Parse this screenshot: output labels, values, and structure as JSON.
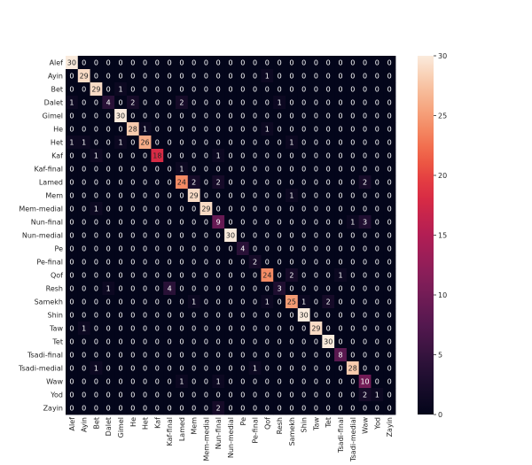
{
  "chart_data": {
    "type": "heatmap",
    "title": "",
    "xlabel": "",
    "ylabel": "",
    "labels": [
      "Alef",
      "Ayin",
      "Bet",
      "Dalet",
      "Gimel",
      "He",
      "Het",
      "Kaf",
      "Kaf-final",
      "Lamed",
      "Mem",
      "Mem-medial",
      "Nun-final",
      "Nun-medial",
      "Pe",
      "Pe-final",
      "Qof",
      "Resh",
      "Samekh",
      "Shin",
      "Taw",
      "Tet",
      "Tsadi-final",
      "Tsadi-medial",
      "Waw",
      "Yod",
      "Zayin"
    ],
    "matrix": [
      [
        30,
        0,
        0,
        0,
        0,
        0,
        0,
        0,
        0,
        0,
        0,
        0,
        0,
        0,
        0,
        0,
        0,
        0,
        0,
        0,
        0,
        0,
        0,
        0,
        0,
        0,
        0
      ],
      [
        0,
        29,
        0,
        0,
        0,
        0,
        0,
        0,
        0,
        0,
        0,
        0,
        0,
        0,
        0,
        0,
        1,
        0,
        0,
        0,
        0,
        0,
        0,
        0,
        0,
        0,
        0
      ],
      [
        0,
        0,
        29,
        0,
        1,
        0,
        0,
        0,
        0,
        0,
        0,
        0,
        0,
        0,
        0,
        0,
        0,
        0,
        0,
        0,
        0,
        0,
        0,
        0,
        0,
        0,
        0
      ],
      [
        1,
        0,
        0,
        4,
        0,
        2,
        0,
        0,
        0,
        2,
        0,
        0,
        0,
        0,
        0,
        0,
        0,
        1,
        0,
        0,
        0,
        0,
        0,
        0,
        0,
        0,
        0
      ],
      [
        0,
        0,
        0,
        0,
        30,
        0,
        0,
        0,
        0,
        0,
        0,
        0,
        0,
        0,
        0,
        0,
        0,
        0,
        0,
        0,
        0,
        0,
        0,
        0,
        0,
        0,
        0
      ],
      [
        0,
        0,
        0,
        0,
        0,
        28,
        1,
        0,
        0,
        0,
        0,
        0,
        0,
        0,
        0,
        0,
        1,
        0,
        0,
        0,
        0,
        0,
        0,
        0,
        0,
        0,
        0
      ],
      [
        1,
        1,
        0,
        0,
        1,
        0,
        26,
        0,
        0,
        0,
        0,
        0,
        0,
        0,
        0,
        0,
        0,
        0,
        1,
        0,
        0,
        0,
        0,
        0,
        0,
        0,
        0
      ],
      [
        0,
        0,
        1,
        0,
        0,
        0,
        0,
        18,
        0,
        0,
        0,
        0,
        1,
        0,
        0,
        0,
        0,
        0,
        0,
        0,
        0,
        0,
        0,
        0,
        0,
        0,
        0
      ],
      [
        0,
        0,
        0,
        0,
        0,
        0,
        0,
        0,
        0,
        1,
        0,
        0,
        0,
        0,
        0,
        0,
        0,
        0,
        0,
        0,
        0,
        0,
        0,
        0,
        0,
        0,
        0
      ],
      [
        0,
        0,
        0,
        0,
        0,
        0,
        0,
        0,
        0,
        24,
        2,
        0,
        2,
        0,
        0,
        0,
        0,
        0,
        0,
        0,
        0,
        0,
        0,
        0,
        2,
        0,
        0
      ],
      [
        0,
        0,
        0,
        0,
        0,
        0,
        0,
        0,
        0,
        0,
        29,
        0,
        0,
        0,
        0,
        0,
        0,
        0,
        1,
        0,
        0,
        0,
        0,
        0,
        0,
        0,
        0
      ],
      [
        0,
        0,
        1,
        0,
        0,
        0,
        0,
        0,
        0,
        0,
        0,
        29,
        0,
        0,
        0,
        0,
        0,
        0,
        0,
        0,
        0,
        0,
        0,
        0,
        0,
        0,
        0
      ],
      [
        0,
        0,
        0,
        0,
        0,
        0,
        0,
        0,
        0,
        0,
        0,
        0,
        9,
        0,
        0,
        0,
        0,
        0,
        0,
        0,
        0,
        0,
        0,
        1,
        3,
        0,
        0
      ],
      [
        0,
        0,
        0,
        0,
        0,
        0,
        0,
        0,
        0,
        0,
        0,
        0,
        0,
        30,
        0,
        0,
        0,
        0,
        0,
        0,
        0,
        0,
        0,
        0,
        0,
        0,
        0
      ],
      [
        0,
        0,
        0,
        0,
        0,
        0,
        0,
        0,
        0,
        0,
        0,
        0,
        0,
        0,
        4,
        0,
        0,
        0,
        0,
        0,
        0,
        0,
        0,
        0,
        0,
        0,
        0
      ],
      [
        0,
        0,
        0,
        0,
        0,
        0,
        0,
        0,
        0,
        0,
        0,
        0,
        0,
        0,
        0,
        2,
        0,
        0,
        0,
        0,
        0,
        0,
        0,
        0,
        0,
        0,
        0
      ],
      [
        0,
        0,
        0,
        0,
        0,
        0,
        0,
        0,
        0,
        0,
        0,
        0,
        0,
        0,
        0,
        0,
        24,
        0,
        2,
        0,
        0,
        0,
        1,
        0,
        0,
        0,
        0
      ],
      [
        0,
        0,
        0,
        1,
        0,
        0,
        0,
        0,
        4,
        0,
        0,
        0,
        0,
        0,
        0,
        0,
        0,
        3,
        0,
        0,
        0,
        0,
        0,
        0,
        0,
        0,
        0
      ],
      [
        0,
        0,
        0,
        0,
        0,
        0,
        0,
        0,
        0,
        0,
        1,
        0,
        0,
        0,
        0,
        0,
        1,
        0,
        25,
        1,
        0,
        2,
        0,
        0,
        0,
        0,
        0
      ],
      [
        0,
        0,
        0,
        0,
        0,
        0,
        0,
        0,
        0,
        0,
        0,
        0,
        0,
        0,
        0,
        0,
        0,
        0,
        0,
        30,
        0,
        0,
        0,
        0,
        0,
        0,
        0
      ],
      [
        0,
        1,
        0,
        0,
        0,
        0,
        0,
        0,
        0,
        0,
        0,
        0,
        0,
        0,
        0,
        0,
        0,
        0,
        0,
        0,
        29,
        0,
        0,
        0,
        0,
        0,
        0
      ],
      [
        0,
        0,
        0,
        0,
        0,
        0,
        0,
        0,
        0,
        0,
        0,
        0,
        0,
        0,
        0,
        0,
        0,
        0,
        0,
        0,
        0,
        30,
        0,
        0,
        0,
        0,
        0
      ],
      [
        0,
        0,
        0,
        0,
        0,
        0,
        0,
        0,
        0,
        0,
        0,
        0,
        0,
        0,
        0,
        0,
        0,
        0,
        0,
        0,
        0,
        0,
        8,
        0,
        0,
        0,
        0
      ],
      [
        0,
        0,
        1,
        0,
        0,
        0,
        0,
        0,
        0,
        0,
        0,
        0,
        0,
        0,
        0,
        1,
        0,
        0,
        0,
        0,
        0,
        0,
        0,
        28,
        0,
        0,
        0
      ],
      [
        0,
        0,
        0,
        0,
        0,
        0,
        0,
        0,
        0,
        1,
        0,
        0,
        1,
        0,
        0,
        0,
        0,
        0,
        0,
        0,
        0,
        0,
        0,
        0,
        10,
        0,
        0
      ],
      [
        0,
        0,
        0,
        0,
        0,
        0,
        0,
        0,
        0,
        0,
        0,
        0,
        0,
        0,
        0,
        0,
        0,
        0,
        0,
        0,
        0,
        0,
        0,
        0,
        2,
        1,
        0
      ],
      [
        0,
        0,
        0,
        0,
        0,
        0,
        0,
        0,
        0,
        0,
        0,
        0,
        2,
        0,
        0,
        0,
        0,
        0,
        0,
        0,
        0,
        0,
        0,
        0,
        0,
        0,
        0
      ]
    ],
    "value_range": [
      0,
      30
    ],
    "colorbar_ticks": [
      0,
      5,
      10,
      15,
      20,
      25,
      30
    ],
    "colormap": "rocket",
    "grid": false
  }
}
